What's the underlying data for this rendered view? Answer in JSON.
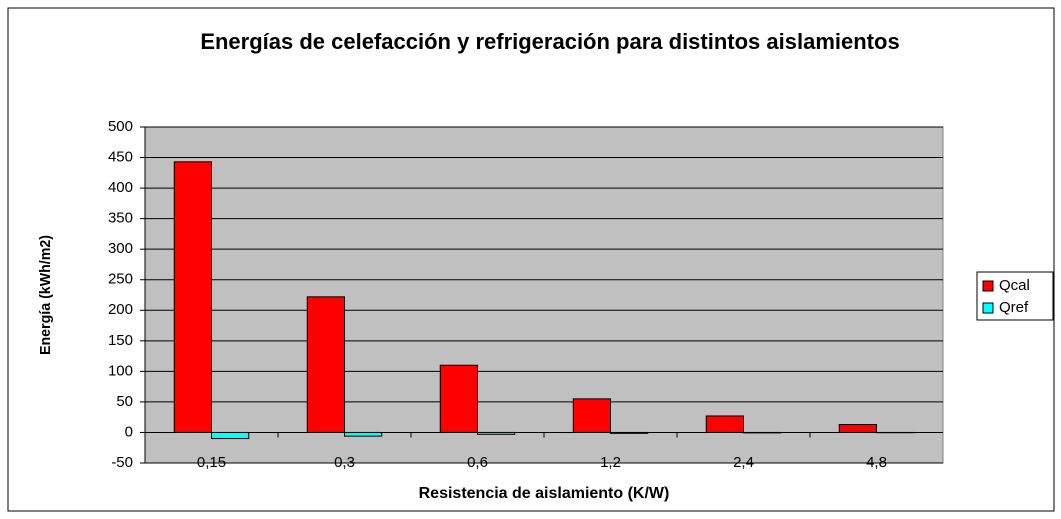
{
  "chart_data": {
    "type": "bar",
    "title": "Energías de celefacción y refrigeración para distintos aislamientos",
    "x_label": "Resistencia de aislamiento (K/W)",
    "y_label": "Energía (kWh/m2)",
    "categories": [
      "0,15",
      "0,3",
      "0,6",
      "1,2",
      "2,4",
      "4,8"
    ],
    "series": [
      {
        "name": "Qcal",
        "color": "#ff0000",
        "values": [
          443,
          222,
          110,
          55,
          27,
          13
        ]
      },
      {
        "name": "Qref",
        "color": "#00ffff",
        "values": [
          -10,
          -6,
          -3,
          -1.5,
          -0.7,
          -0.4
        ]
      }
    ],
    "ylim": [
      -50,
      500
    ],
    "yticks": [
      -50,
      0,
      50,
      100,
      150,
      200,
      250,
      300,
      350,
      400,
      450,
      500
    ],
    "grid": true,
    "legend": "right"
  }
}
